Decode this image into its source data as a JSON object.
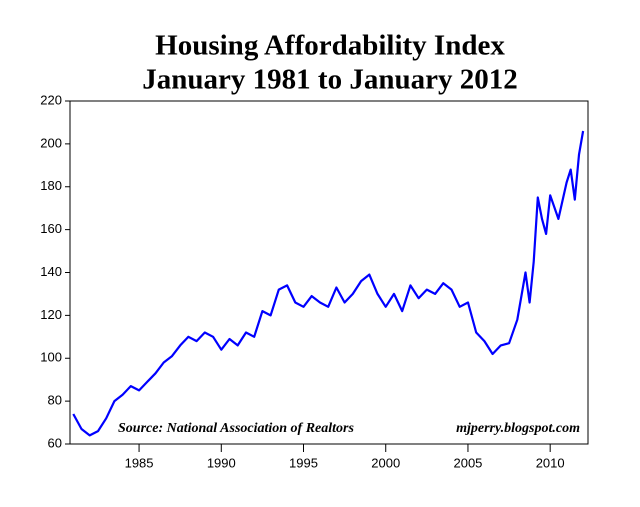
{
  "chart_data": {
    "type": "line",
    "title": "Housing Affordability Index",
    "subtitle": "January 1981 to January 2012",
    "annotations": [
      "Source: National Association of Realtors",
      "mjperry.blogspot.com"
    ],
    "x": [
      1981,
      1981.5,
      1982,
      1982.5,
      1983,
      1983.5,
      1984,
      1984.5,
      1985,
      1985.5,
      1986,
      1986.5,
      1987,
      1987.5,
      1988,
      1988.5,
      1989,
      1989.5,
      1990,
      1990.5,
      1991,
      1991.5,
      1992,
      1992.5,
      1993,
      1993.5,
      1994,
      1994.5,
      1995,
      1995.5,
      1996,
      1996.5,
      1997,
      1997.5,
      1998,
      1998.5,
      1999,
      1999.5,
      2000,
      2000.5,
      2001,
      2001.5,
      2002,
      2002.5,
      2003,
      2003.5,
      2004,
      2004.5,
      2005,
      2005.5,
      2006,
      2006.5,
      2007,
      2007.5,
      2008,
      2008.5,
      2008.75,
      2009,
      2009.25,
      2009.5,
      2009.75,
      2010,
      2010.5,
      2011,
      2011.25,
      2011.5,
      2011.75,
      2012
    ],
    "series": [
      {
        "name": "Housing Affordability Index",
        "color": "#0000ff",
        "values": [
          74,
          67,
          64,
          66,
          72,
          80,
          83,
          87,
          85,
          89,
          93,
          98,
          101,
          106,
          110,
          108,
          112,
          110,
          104,
          109,
          106,
          112,
          110,
          122,
          120,
          132,
          134,
          126,
          124,
          129,
          126,
          124,
          133,
          126,
          130,
          136,
          139,
          130,
          124,
          130,
          122,
          134,
          128,
          132,
          130,
          135,
          132,
          124,
          126,
          112,
          108,
          102,
          106,
          107,
          118,
          140,
          126,
          145,
          175,
          165,
          158,
          176,
          165,
          182,
          188,
          174,
          195,
          206
        ]
      }
    ],
    "xlim": [
      1980.8,
      2012.3
    ],
    "xticks": [
      1985,
      1990,
      1995,
      2000,
      2005,
      2010
    ],
    "ylim": [
      60,
      220
    ],
    "yticks": [
      60,
      80,
      100,
      120,
      140,
      160,
      180,
      200,
      220
    ]
  }
}
